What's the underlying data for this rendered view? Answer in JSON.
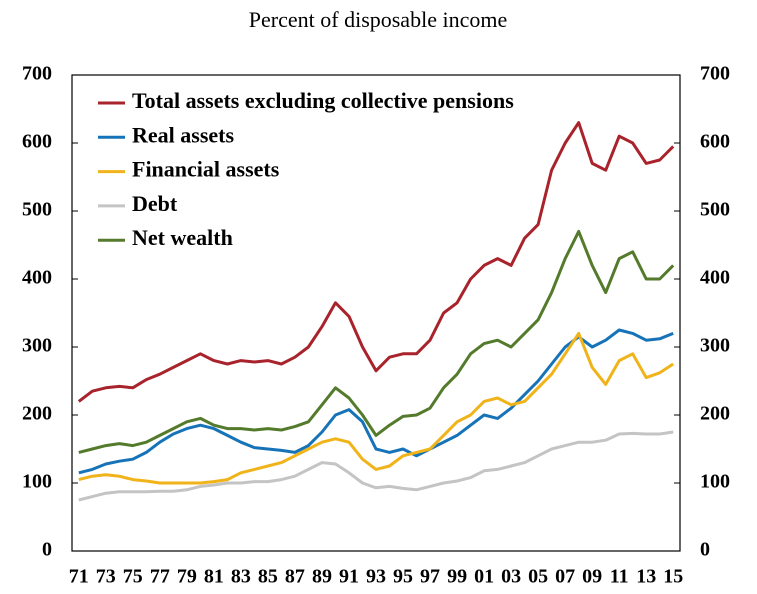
{
  "chart_data": {
    "type": "line",
    "title": "Percent of disposable income",
    "categories": [
      "71",
      null,
      "73",
      null,
      "75",
      null,
      "77",
      null,
      "79",
      null,
      "81",
      null,
      "83",
      null,
      "85",
      null,
      "87",
      null,
      "89",
      null,
      "91",
      null,
      "93",
      null,
      "95",
      null,
      "97",
      null,
      "99",
      null,
      "01",
      null,
      "03",
      null,
      "05",
      null,
      "07",
      null,
      "09",
      null,
      "11",
      null,
      "13",
      null,
      "15"
    ],
    "series": [
      {
        "name": "Total assets excluding collective pensions",
        "color": "#a8232b",
        "values": [
          220,
          235,
          240,
          242,
          240,
          252,
          260,
          270,
          280,
          290,
          280,
          275,
          280,
          278,
          280,
          275,
          285,
          300,
          330,
          365,
          345,
          300,
          265,
          285,
          290,
          290,
          310,
          350,
          365,
          400,
          420,
          430,
          420,
          460,
          480,
          560,
          600,
          630,
          570,
          560,
          610,
          600,
          570,
          575,
          595
        ]
      },
      {
        "name": "Real assets",
        "color": "#1673b8",
        "values": [
          115,
          120,
          128,
          132,
          135,
          145,
          160,
          172,
          180,
          185,
          180,
          170,
          160,
          152,
          150,
          148,
          145,
          155,
          175,
          200,
          208,
          190,
          150,
          145,
          150,
          140,
          150,
          160,
          170,
          185,
          200,
          195,
          210,
          230,
          250,
          275,
          300,
          315,
          300,
          310,
          325,
          320,
          310,
          312,
          320
        ]
      },
      {
        "name": "Financial assets",
        "color": "#f0b31a",
        "values": [
          105,
          110,
          112,
          110,
          105,
          103,
          100,
          100,
          100,
          100,
          102,
          105,
          115,
          120,
          125,
          130,
          140,
          150,
          160,
          165,
          160,
          135,
          120,
          125,
          140,
          145,
          150,
          170,
          190,
          200,
          220,
          225,
          215,
          220,
          240,
          260,
          290,
          320,
          270,
          245,
          280,
          290,
          255,
          262,
          275
        ]
      },
      {
        "name": "Debt",
        "color": "#c4c4c4",
        "values": [
          75,
          80,
          85,
          87,
          87,
          87,
          88,
          88,
          90,
          95,
          97,
          100,
          100,
          102,
          102,
          105,
          110,
          120,
          130,
          128,
          115,
          100,
          93,
          95,
          92,
          90,
          95,
          100,
          103,
          108,
          118,
          120,
          125,
          130,
          140,
          150,
          155,
          160,
          160,
          163,
          172,
          173,
          172,
          172,
          175
        ]
      },
      {
        "name": "Net wealth",
        "color": "#547a2c",
        "values": [
          145,
          150,
          155,
          158,
          155,
          160,
          170,
          180,
          190,
          195,
          185,
          180,
          180,
          178,
          180,
          178,
          183,
          190,
          215,
          240,
          225,
          200,
          170,
          185,
          198,
          200,
          210,
          240,
          260,
          290,
          305,
          310,
          300,
          320,
          340,
          380,
          430,
          470,
          420,
          380,
          430,
          440,
          400,
          400,
          420
        ]
      }
    ],
    "ylim": [
      0,
      700
    ],
    "yticks": [
      0,
      100,
      200,
      300,
      400,
      500,
      600,
      700
    ],
    "y2lim": [
      0,
      700
    ],
    "y2ticks": [
      0,
      100,
      200,
      300,
      400,
      500,
      600,
      700
    ],
    "legend": "upper-left"
  }
}
